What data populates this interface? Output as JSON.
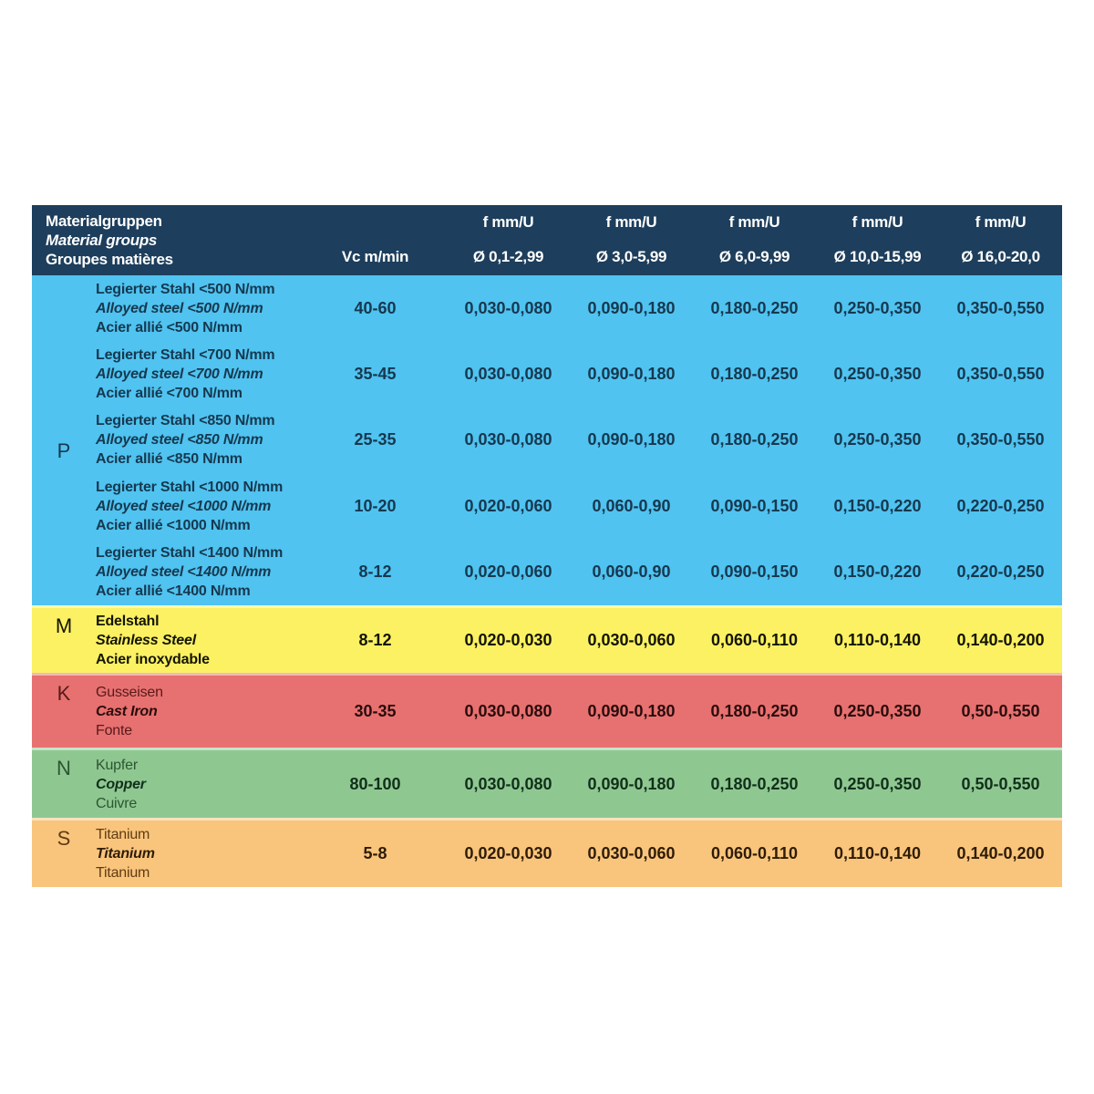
{
  "header": {
    "material_lines": [
      "Materialgruppen",
      "Material groups",
      "Groupes matières"
    ],
    "vc_label": "Vc m/min",
    "f_label": "f mm/U",
    "diameters": [
      "Ø 0,1-2,99",
      "Ø 3,0-5,99",
      "Ø 6,0-9,99",
      "Ø 10,0-15,99",
      "Ø 16,0-20,0"
    ]
  },
  "colors": {
    "page_bg": "#FFFFFF",
    "header_bg": "#1D3E5C",
    "header_text": "#FFFFFF",
    "band_p": "#50C3F0",
    "band_m": "#FBF163",
    "band_k": "#E77170",
    "band_n": "#8FC791",
    "band_s": "#F9C47C"
  },
  "groups": [
    {
      "letter": "P",
      "color": "#50C3F0",
      "rows": [
        {
          "names": [
            "Legierter Stahl <500 N/mm",
            "Alloyed steel <500 N/mm",
            "Acier allié <500 N/mm"
          ],
          "vc": "40-60",
          "f": [
            "0,030-0,080",
            "0,090-0,180",
            "0,180-0,250",
            "0,250-0,350",
            "0,350-0,550"
          ]
        },
        {
          "names": [
            "Legierter Stahl <700 N/mm",
            "Alloyed steel <700 N/mm",
            "Acier allié <700 N/mm"
          ],
          "vc": "35-45",
          "f": [
            "0,030-0,080",
            "0,090-0,180",
            "0,180-0,250",
            "0,250-0,350",
            "0,350-0,550"
          ]
        },
        {
          "names": [
            "Legierter Stahl <850 N/mm",
            "Alloyed steel <850 N/mm",
            "Acier allié <850 N/mm"
          ],
          "vc": "25-35",
          "f": [
            "0,030-0,080",
            "0,090-0,180",
            "0,180-0,250",
            "0,250-0,350",
            "0,350-0,550"
          ]
        },
        {
          "names": [
            "Legierter Stahl <1000 N/mm",
            "Alloyed steel <1000 N/mm",
            "Acier allié <1000 N/mm"
          ],
          "vc": "10-20",
          "f": [
            "0,020-0,060",
            "0,060-0,90",
            "0,090-0,150",
            "0,150-0,220",
            "0,220-0,250"
          ]
        },
        {
          "names": [
            "Legierter Stahl <1400 N/mm",
            "Alloyed steel <1400 N/mm",
            "Acier allié <1400 N/mm"
          ],
          "vc": "8-12",
          "f": [
            "0,020-0,060",
            "0,060-0,90",
            "0,090-0,150",
            "0,150-0,220",
            "0,220-0,250"
          ]
        }
      ]
    },
    {
      "letter": "M",
      "color": "#FBF163",
      "rows": [
        {
          "names": [
            "Edelstahl",
            "Stainless Steel",
            "Acier inoxydable"
          ],
          "vc": "8-12",
          "f": [
            "0,020-0,030",
            "0,030-0,060",
            "0,060-0,110",
            "0,110-0,140",
            "0,140-0,200"
          ]
        }
      ]
    },
    {
      "letter": "K",
      "color": "#E77170",
      "rows": [
        {
          "names": [
            "Gusseisen",
            "Cast Iron",
            "Fonte"
          ],
          "vc": "30-35",
          "f": [
            "0,030-0,080",
            "0,090-0,180",
            "0,180-0,250",
            "0,250-0,350",
            "0,50-0,550"
          ]
        }
      ]
    },
    {
      "letter": "N",
      "color": "#8FC791",
      "rows": [
        {
          "names": [
            "Kupfer",
            "Copper",
            "Cuivre"
          ],
          "vc": "80-100",
          "f": [
            "0,030-0,080",
            "0,090-0,180",
            "0,180-0,250",
            "0,250-0,350",
            "0,50-0,550"
          ]
        }
      ]
    },
    {
      "letter": "S",
      "color": "#F9C47C",
      "rows": [
        {
          "names": [
            "Titanium",
            "Titanium",
            "Titanium"
          ],
          "vc": "5-8",
          "f": [
            "0,020-0,030",
            "0,030-0,060",
            "0,060-0,110",
            "0,110-0,140",
            "0,140-0,200"
          ]
        }
      ]
    }
  ]
}
